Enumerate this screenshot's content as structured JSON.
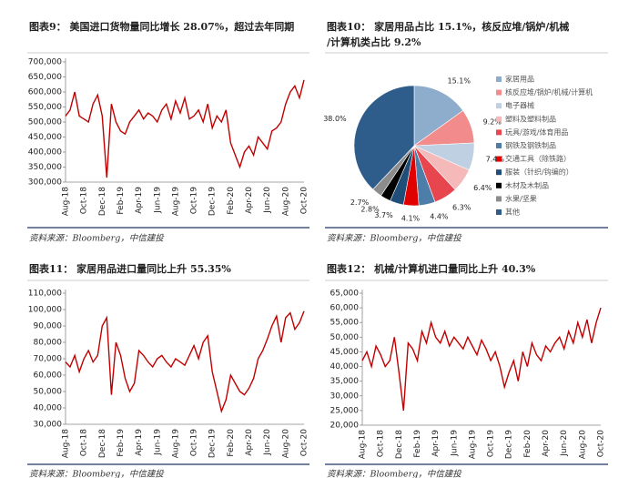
{
  "chart_data": [
    {
      "type": "line",
      "title": "图表9：  美国进口货物量同比增长 28.07%，超过去年同期",
      "source": "资料来源：Bloomberg，中信建投",
      "categories": [
        "Aug-18",
        null,
        null,
        null,
        "Oct-18",
        null,
        null,
        null,
        "Dec-18",
        null,
        null,
        null,
        "Feb-19",
        null,
        null,
        null,
        "Apr-19",
        null,
        null,
        null,
        "Jun-19",
        null,
        null,
        null,
        "Aug-19",
        null,
        null,
        null,
        "Oct-19",
        null,
        null,
        null,
        "Dec-19",
        null,
        null,
        null,
        "Feb-20",
        null,
        null,
        null,
        "Apr-20",
        null,
        null,
        null,
        "Jun-20",
        null,
        null,
        null,
        "Aug-20",
        null,
        null,
        null,
        "Oct-20"
      ],
      "values": [
        520000,
        540000,
        600000,
        520000,
        510000,
        500000,
        560000,
        590000,
        520000,
        315000,
        560000,
        500000,
        470000,
        460000,
        500000,
        520000,
        540000,
        510000,
        530000,
        520000,
        500000,
        540000,
        560000,
        510000,
        570000,
        530000,
        580000,
        510000,
        520000,
        540000,
        500000,
        560000,
        480000,
        520000,
        500000,
        540000,
        430000,
        390000,
        350000,
        400000,
        420000,
        390000,
        450000,
        430000,
        410000,
        470000,
        480000,
        500000,
        560000,
        600000,
        620000,
        580000,
        640000
      ],
      "color": "#c00000",
      "ylim": [
        300000,
        700000
      ],
      "yticks": [
        {
          "value": 300000,
          "label": "300,000"
        },
        {
          "value": 350000,
          "label": "350,000"
        },
        {
          "value": 400000,
          "label": "400,000"
        },
        {
          "value": 450000,
          "label": "450,000"
        },
        {
          "value": 500000,
          "label": "500,000"
        },
        {
          "value": 550000,
          "label": "550,000"
        },
        {
          "value": 600000,
          "label": "600,000"
        },
        {
          "value": 650000,
          "label": "650,000"
        },
        {
          "value": 700000,
          "label": "700,000"
        }
      ]
    },
    {
      "type": "pie",
      "title": "图表10：  家居用品占比 15.1%，核反应堆/锅炉/机械/计算机类占比 9.2%",
      "source": "资料来源：Bloomberg，中信建投",
      "categories": [
        "家居用品",
        "核反应堆/锅炉/机械/计算机",
        "电子器械",
        "塑料及塑料制品",
        "玩具/游戏/体育用品",
        "钢铁及钢铁制品",
        "交通工具（除铁路）",
        "服装（针织/钩编的）",
        "木材及木制品",
        "水果/坚果",
        "其他"
      ],
      "values": [
        15.1,
        9.2,
        7.4,
        6.4,
        6.3,
        4.4,
        4.1,
        3.7,
        2.8,
        2.7,
        38.0
      ],
      "value_labels": [
        "15.1%",
        "9.2%",
        "7.4%",
        "6.4%",
        "6.3%",
        "4.4%",
        "4.1%",
        "3.7%",
        "2.8%",
        "2.7%",
        "38.0%"
      ],
      "colors": [
        "#8eaccb",
        "#f28b8b",
        "#bfd0e2",
        "#f5b9b9",
        "#e8464e",
        "#4d7ea9",
        "#e00000",
        "#1f4e79",
        "#000000",
        "#8c8c8c",
        "#2e5d8c"
      ]
    },
    {
      "type": "line",
      "title": "图表11：  家居用品进口量同比上升 55.35%",
      "source": "资料来源：Bloomberg，中信建投",
      "categories": [
        "Aug-18",
        null,
        null,
        null,
        "Oct-18",
        null,
        null,
        null,
        "Dec-18",
        null,
        null,
        null,
        "Feb-19",
        null,
        null,
        null,
        "Apr-19",
        null,
        null,
        null,
        "Jun-19",
        null,
        null,
        null,
        "Aug-19",
        null,
        null,
        null,
        "Oct-19",
        null,
        null,
        null,
        "Dec-19",
        null,
        null,
        null,
        "Feb-20",
        null,
        null,
        null,
        "Apr-20",
        null,
        null,
        null,
        "Jun-20",
        null,
        null,
        null,
        "Aug-20",
        null,
        null,
        null,
        "Oct-20"
      ],
      "values": [
        68000,
        65000,
        72000,
        62000,
        70000,
        75000,
        68000,
        72000,
        90000,
        95000,
        48000,
        80000,
        72000,
        58000,
        50000,
        55000,
        75000,
        72000,
        68000,
        65000,
        70000,
        72000,
        68000,
        65000,
        70000,
        68000,
        66000,
        72000,
        78000,
        70000,
        80000,
        84000,
        62000,
        50000,
        38000,
        45000,
        60000,
        55000,
        50000,
        48000,
        52000,
        58000,
        70000,
        75000,
        82000,
        90000,
        96000,
        80000,
        95000,
        98000,
        88000,
        92000,
        99000
      ],
      "color": "#c00000",
      "ylim": [
        30000,
        110000
      ],
      "yticks": [
        {
          "value": 30000,
          "label": "30,000"
        },
        {
          "value": 40000,
          "label": "40,000"
        },
        {
          "value": 50000,
          "label": "50,000"
        },
        {
          "value": 60000,
          "label": "60,000"
        },
        {
          "value": 70000,
          "label": "70,000"
        },
        {
          "value": 80000,
          "label": "80,000"
        },
        {
          "value": 90000,
          "label": "90,000"
        },
        {
          "value": 100000,
          "label": "100,000"
        },
        {
          "value": 110000,
          "label": "110,000"
        }
      ]
    },
    {
      "type": "line",
      "title": "图表12：  机械/计算机进口量同比上升 40.3%",
      "source": "资料来源：Bloomberg，中信建投",
      "categories": [
        "Aug-18",
        null,
        null,
        null,
        "Oct-18",
        null,
        null,
        null,
        "Dec-18",
        null,
        null,
        null,
        "Feb-19",
        null,
        null,
        null,
        "Apr-19",
        null,
        null,
        null,
        "Jun-19",
        null,
        null,
        null,
        "Aug-19",
        null,
        null,
        null,
        "Oct-19",
        null,
        null,
        null,
        "Dec-19",
        null,
        null,
        null,
        "Feb-20",
        null,
        null,
        null,
        "Apr-20",
        null,
        null,
        null,
        "Jun-20",
        null,
        null,
        null,
        "Aug-20",
        null,
        null,
        null,
        "Oct-20"
      ],
      "values": [
        42000,
        45000,
        40000,
        47000,
        44000,
        40000,
        42000,
        50000,
        38000,
        25000,
        48000,
        46000,
        42000,
        52000,
        48000,
        55000,
        50000,
        48000,
        52000,
        47000,
        50000,
        48000,
        46000,
        50000,
        47000,
        44000,
        49000,
        46000,
        42000,
        45000,
        40000,
        33000,
        38000,
        42000,
        35000,
        45000,
        40000,
        48000,
        44000,
        42000,
        47000,
        45000,
        48000,
        50000,
        46000,
        52000,
        48000,
        55000,
        50000,
        56000,
        48000,
        55000,
        60000
      ],
      "color": "#c00000",
      "ylim": [
        20000,
        65000
      ],
      "yticks": [
        {
          "value": 20000,
          "label": "20,000"
        },
        {
          "value": 25000,
          "label": "25,000"
        },
        {
          "value": 30000,
          "label": "30,000"
        },
        {
          "value": 35000,
          "label": "35,000"
        },
        {
          "value": 40000,
          "label": "40,000"
        },
        {
          "value": 45000,
          "label": "45,000"
        },
        {
          "value": 50000,
          "label": "50,000"
        },
        {
          "value": 55000,
          "label": "55,000"
        },
        {
          "value": 60000,
          "label": "60,000"
        },
        {
          "value": 65000,
          "label": "65,000"
        }
      ]
    }
  ]
}
